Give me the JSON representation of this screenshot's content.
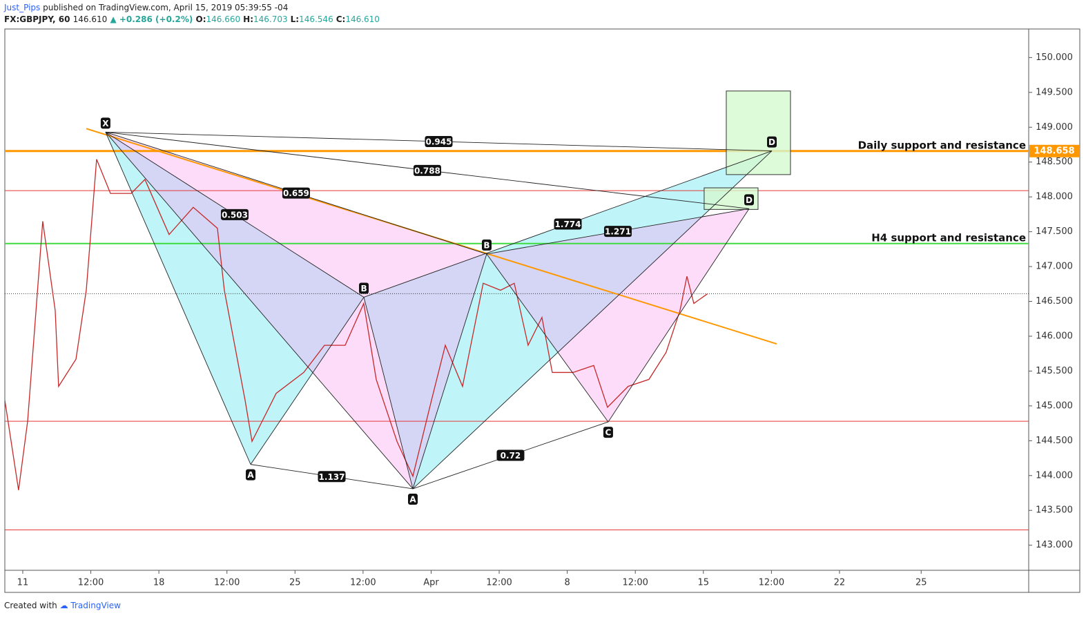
{
  "header": {
    "author": "Just_Pips",
    "byline": "published on TradingView.com, April 15, 2019 05:39:55 -04",
    "symbol": "FX:GBPJPY, 60",
    "last": "146.610",
    "change": "+0.286 (+0.2%)",
    "ohlc": [
      {
        "key": "O:",
        "value": "146.660"
      },
      {
        "key": "H:",
        "value": "146.703"
      },
      {
        "key": "L:",
        "value": "146.546"
      },
      {
        "key": "C:",
        "value": "146.610"
      }
    ]
  },
  "chart_data": {
    "type": "line",
    "color": "#c62828",
    "x": [
      -15.8,
      -3.7,
      4.3,
      10.3,
      17.6,
      28.6,
      31.6,
      46.9,
      56.0,
      65.1,
      77.3,
      95.6,
      107.7,
      129.0,
      150.3,
      171.6,
      177.7,
      196.0,
      202.1,
      223.4,
      247.7,
      266.0,
      284.2,
      300.6,
      311.6,
      329.9,
      343.9,
      360.3,
      372.5,
      387.7,
      405.9,
      421.2,
      433.3,
      445.5,
      457.7,
      466.8,
      485.1,
      503.3,
      515.5,
      533.7,
      552.0,
      567.2,
      579.4,
      585.5,
      591.6,
      603.7
    ],
    "values": [
      145.08,
      143.79,
      144.78,
      146.07,
      147.65,
      146.37,
      145.28,
      145.67,
      146.66,
      148.54,
      148.05,
      148.05,
      148.25,
      147.46,
      147.85,
      147.55,
      146.66,
      145.08,
      144.49,
      145.18,
      145.48,
      145.87,
      145.87,
      146.47,
      145.38,
      144.49,
      143.99,
      145.08,
      145.87,
      145.28,
      146.76,
      146.66,
      146.76,
      145.87,
      146.27,
      145.48,
      145.48,
      145.58,
      144.98,
      145.28,
      145.38,
      145.77,
      146.37,
      146.86,
      146.47,
      146.61
    ],
    "xlim": [
      -15.8,
      886.8
    ],
    "xticks": [
      {
        "value": 0,
        "label": "11"
      },
      {
        "value": 60,
        "label": "12:00"
      },
      {
        "value": 120,
        "label": "18"
      },
      {
        "value": 180,
        "label": "12:00"
      },
      {
        "value": 240,
        "label": "25"
      },
      {
        "value": 300,
        "label": "12:00"
      },
      {
        "value": 360,
        "label": "Apr"
      },
      {
        "value": 420,
        "label": "12:00"
      },
      {
        "value": 480,
        "label": "8"
      },
      {
        "value": 540,
        "label": "12:00"
      },
      {
        "value": 600,
        "label": "15"
      },
      {
        "value": 660,
        "label": "12:00"
      },
      {
        "value": 720,
        "label": "22"
      },
      {
        "value": 792,
        "label": "25"
      }
    ],
    "ylim": [
      142.64,
      150.41
    ],
    "yticks": [
      {
        "value": 143,
        "label": "143.000"
      },
      {
        "value": 143.5,
        "label": "143.500"
      },
      {
        "value": 144,
        "label": "144.000"
      },
      {
        "value": 144.5,
        "label": "144.500"
      },
      {
        "value": 145,
        "label": "145.000"
      },
      {
        "value": 145.5,
        "label": "145.500"
      },
      {
        "value": 146,
        "label": "146.000"
      },
      {
        "value": 146.5,
        "label": "146.500"
      },
      {
        "value": 147,
        "label": "147.000"
      },
      {
        "value": 147.5,
        "label": "147.500"
      },
      {
        "value": 148,
        "label": "148.000"
      },
      {
        "value": 148.5,
        "label": "148.500"
      },
      {
        "value": 149,
        "label": "149.000"
      },
      {
        "value": 149.5,
        "label": "149.500"
      },
      {
        "value": 150,
        "label": "150.000"
      }
    ],
    "levels": [
      {
        "value": 148.658,
        "color": "#ff9800",
        "width": 3,
        "price_label": true
      },
      {
        "value": 148.09,
        "color": "#e53935",
        "width": 1
      },
      {
        "value": 147.33,
        "color": "#3ddc3d",
        "width": 2
      },
      {
        "value": 146.61,
        "color": "#333333",
        "width": 1,
        "dotted": true
      },
      {
        "value": 144.78,
        "color": "#e53935",
        "width": 1
      },
      {
        "value": 143.22,
        "color": "#e53935",
        "width": 1
      }
    ],
    "annotations": [
      {
        "text": "Daily support and resistance",
        "y": 148.658
      },
      {
        "text": "H4 support and resistance",
        "y": 147.33
      }
    ],
    "trendline": {
      "x": [
        56,
        664.6
      ],
      "values": [
        148.98,
        145.89
      ],
      "color": "#ff9800"
    },
    "boxes": [
      {
        "x": [
          620.2,
          676.8
        ],
        "y": [
          148.32,
          149.52
        ]
      },
      {
        "x": [
          600.7,
          648.2
        ],
        "y": [
          147.82,
          148.13
        ]
      }
    ],
    "box_color": "#d4f9d0",
    "points": [
      {
        "label": "X",
        "x": 73,
        "y": 148.93,
        "side": "above"
      },
      {
        "label": "A",
        "x": 200.9,
        "y": 144.16,
        "side": "below"
      },
      {
        "label": "B",
        "x": 300.7,
        "y": 146.56,
        "side": "above"
      },
      {
        "label": "A",
        "x": 343.9,
        "y": 143.81,
        "side": "below"
      },
      {
        "label": "B",
        "x": 409.0,
        "y": 147.18,
        "side": "above"
      },
      {
        "label": "C",
        "x": 516.1,
        "y": 144.77,
        "side": "below"
      },
      {
        "label": "D",
        "x": 660.4,
        "y": 148.66,
        "side": "above"
      },
      {
        "label": "D",
        "x": 640.3,
        "y": 147.83,
        "side": "above"
      }
    ],
    "patterns": [
      {
        "points": [
          0,
          1,
          2,
          3,
          6
        ],
        "color": "#5fe3f0",
        "ratios": {
          "XB": 0.503,
          "AC": 1.137,
          "BD": 1.774,
          "XD": 0.945
        }
      },
      {
        "points": [
          0,
          3,
          4,
          5,
          7
        ],
        "color": "#f7a8f0",
        "ratios": {
          "XB": 0.659,
          "AC": 0.72,
          "BD": 1.271,
          "XD": 0.788
        }
      }
    ]
  },
  "footer": {
    "created": "Created with",
    "brand": "TradingView"
  }
}
